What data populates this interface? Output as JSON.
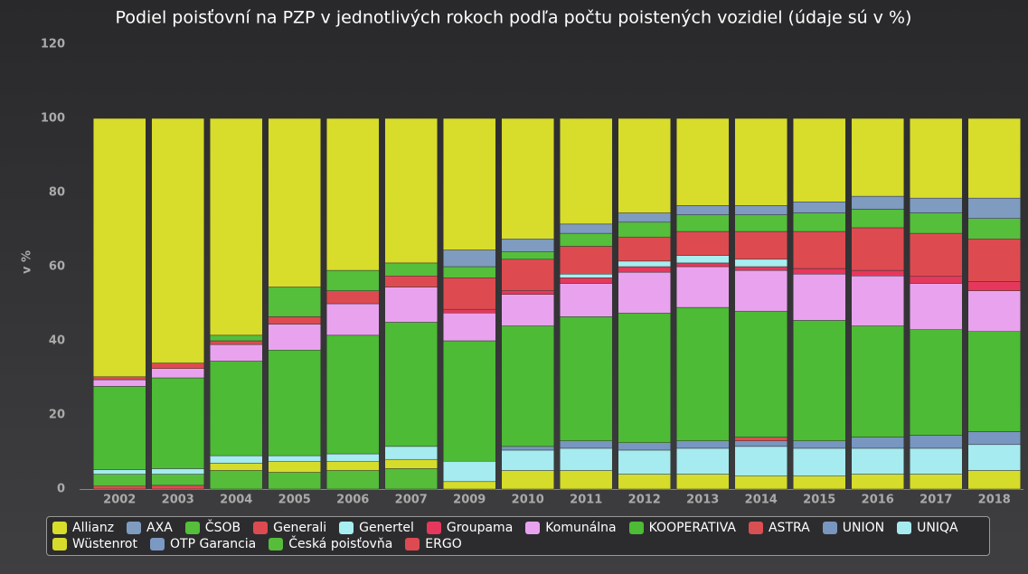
{
  "chart_data": {
    "type": "stacked_bar",
    "title": "Podiel poisťovní na PZP v jednotlivých rokoch podľa počtu poistených vozidiel (údaje sú v %)",
    "y_label": "v %",
    "categories": [
      "2002",
      "2003",
      "2004",
      "2005",
      "2006",
      "2007",
      "2009",
      "2010",
      "2011",
      "2012",
      "2013",
      "2014",
      "2015",
      "2016",
      "2017",
      "2018"
    ],
    "ylim": [
      0,
      120
    ],
    "yticks": [
      0,
      20,
      40,
      60,
      80,
      100,
      120
    ],
    "grid": false,
    "legend": "bottom",
    "series": [
      {
        "name": "Allianz",
        "color": "#d8dc2b",
        "values": [
          69.7,
          66,
          58.5,
          45.5,
          41,
          39,
          35.5,
          32.5,
          28.5,
          25.5,
          23.5,
          23.5,
          22.5,
          21,
          21.5,
          21.5
        ]
      },
      {
        "name": "AXA",
        "color": "#7f9bc0",
        "values": [
          0,
          0,
          0,
          0,
          0,
          0,
          4.5,
          3.5,
          2.5,
          2.5,
          2.5,
          2.5,
          3,
          3.5,
          4,
          5.5
        ]
      },
      {
        "name": "ČSOB",
        "color": "#55be3b",
        "values": [
          0,
          0,
          1.5,
          8,
          5.5,
          3.5,
          3,
          2,
          3.5,
          4,
          4.5,
          4.5,
          5,
          5,
          5.5,
          5.5
        ]
      },
      {
        "name": "Generali",
        "color": "#dd4b50",
        "values": [
          0.8,
          1.5,
          1,
          2,
          3.5,
          3,
          8.5,
          8.5,
          7.5,
          6.5,
          6.5,
          7.5,
          10,
          11.5,
          11.5,
          11.5
        ]
      },
      {
        "name": "Genertel",
        "color": "#a6eef0",
        "values": [
          0,
          0,
          0,
          0,
          0,
          0,
          0,
          0,
          1,
          1.5,
          2,
          2,
          0,
          0,
          0,
          0
        ]
      },
      {
        "name": "Groupama",
        "color": "#e6385c",
        "values": [
          0,
          0,
          0,
          0,
          0,
          0,
          1,
          1,
          1.5,
          1.5,
          1,
          1,
          1.5,
          1.5,
          2,
          2.5
        ]
      },
      {
        "name": "Komunálna",
        "color": "#e9a3ee",
        "values": [
          1.8,
          2.5,
          4.5,
          7,
          8.5,
          9.5,
          7.5,
          8.5,
          9,
          11,
          11,
          11,
          12.5,
          13.5,
          12.5,
          11
        ]
      },
      {
        "name": "KOOPERATIVA",
        "color": "#4dbb35",
        "values": [
          22.5,
          24.5,
          25.5,
          28.5,
          32,
          33.5,
          32.5,
          32.5,
          33.5,
          35,
          36,
          34,
          32.5,
          30,
          28.5,
          27
        ]
      },
      {
        "name": "ASTRA",
        "color": "#d94f52",
        "values": [
          0,
          0,
          0,
          0,
          0,
          0,
          0,
          0,
          0,
          0,
          0,
          1,
          0,
          0,
          0,
          0
        ]
      },
      {
        "name": "UNION",
        "color": "#7896c0",
        "values": [
          0,
          0,
          0,
          0,
          0,
          0,
          0,
          1,
          2,
          2,
          2,
          1.5,
          2,
          3,
          3.5,
          3.5
        ]
      },
      {
        "name": "UNIQA",
        "color": "#a5ebef",
        "values": [
          1.2,
          1.5,
          2,
          1.5,
          2,
          3.5,
          5.5,
          5.5,
          6,
          6.5,
          7,
          8,
          7.5,
          7,
          7,
          7
        ]
      },
      {
        "name": "Wüstenrot",
        "color": "#d6dc2a",
        "values": [
          0,
          0,
          2,
          3,
          2.5,
          2.5,
          2,
          5,
          5,
          4,
          4,
          3.5,
          3.5,
          4,
          4,
          5
        ]
      },
      {
        "name": "OTP Garancia",
        "color": "#7b99c2",
        "values": [
          0,
          0,
          0,
          0,
          0,
          0,
          0,
          0,
          0,
          0,
          0,
          0,
          0,
          0,
          0,
          0
        ]
      },
      {
        "name": "Česká poisťovňa",
        "color": "#55bd3a",
        "values": [
          3.2,
          3,
          5,
          4.5,
          5,
          5.5,
          0,
          0,
          0,
          0,
          0,
          0,
          0,
          0,
          0,
          0
        ]
      },
      {
        "name": "ERGO",
        "color": "#dd4a51",
        "values": [
          0.8,
          1,
          0,
          0,
          0,
          0,
          0,
          0,
          0,
          0,
          0,
          0,
          0,
          0,
          0,
          0
        ]
      }
    ]
  }
}
